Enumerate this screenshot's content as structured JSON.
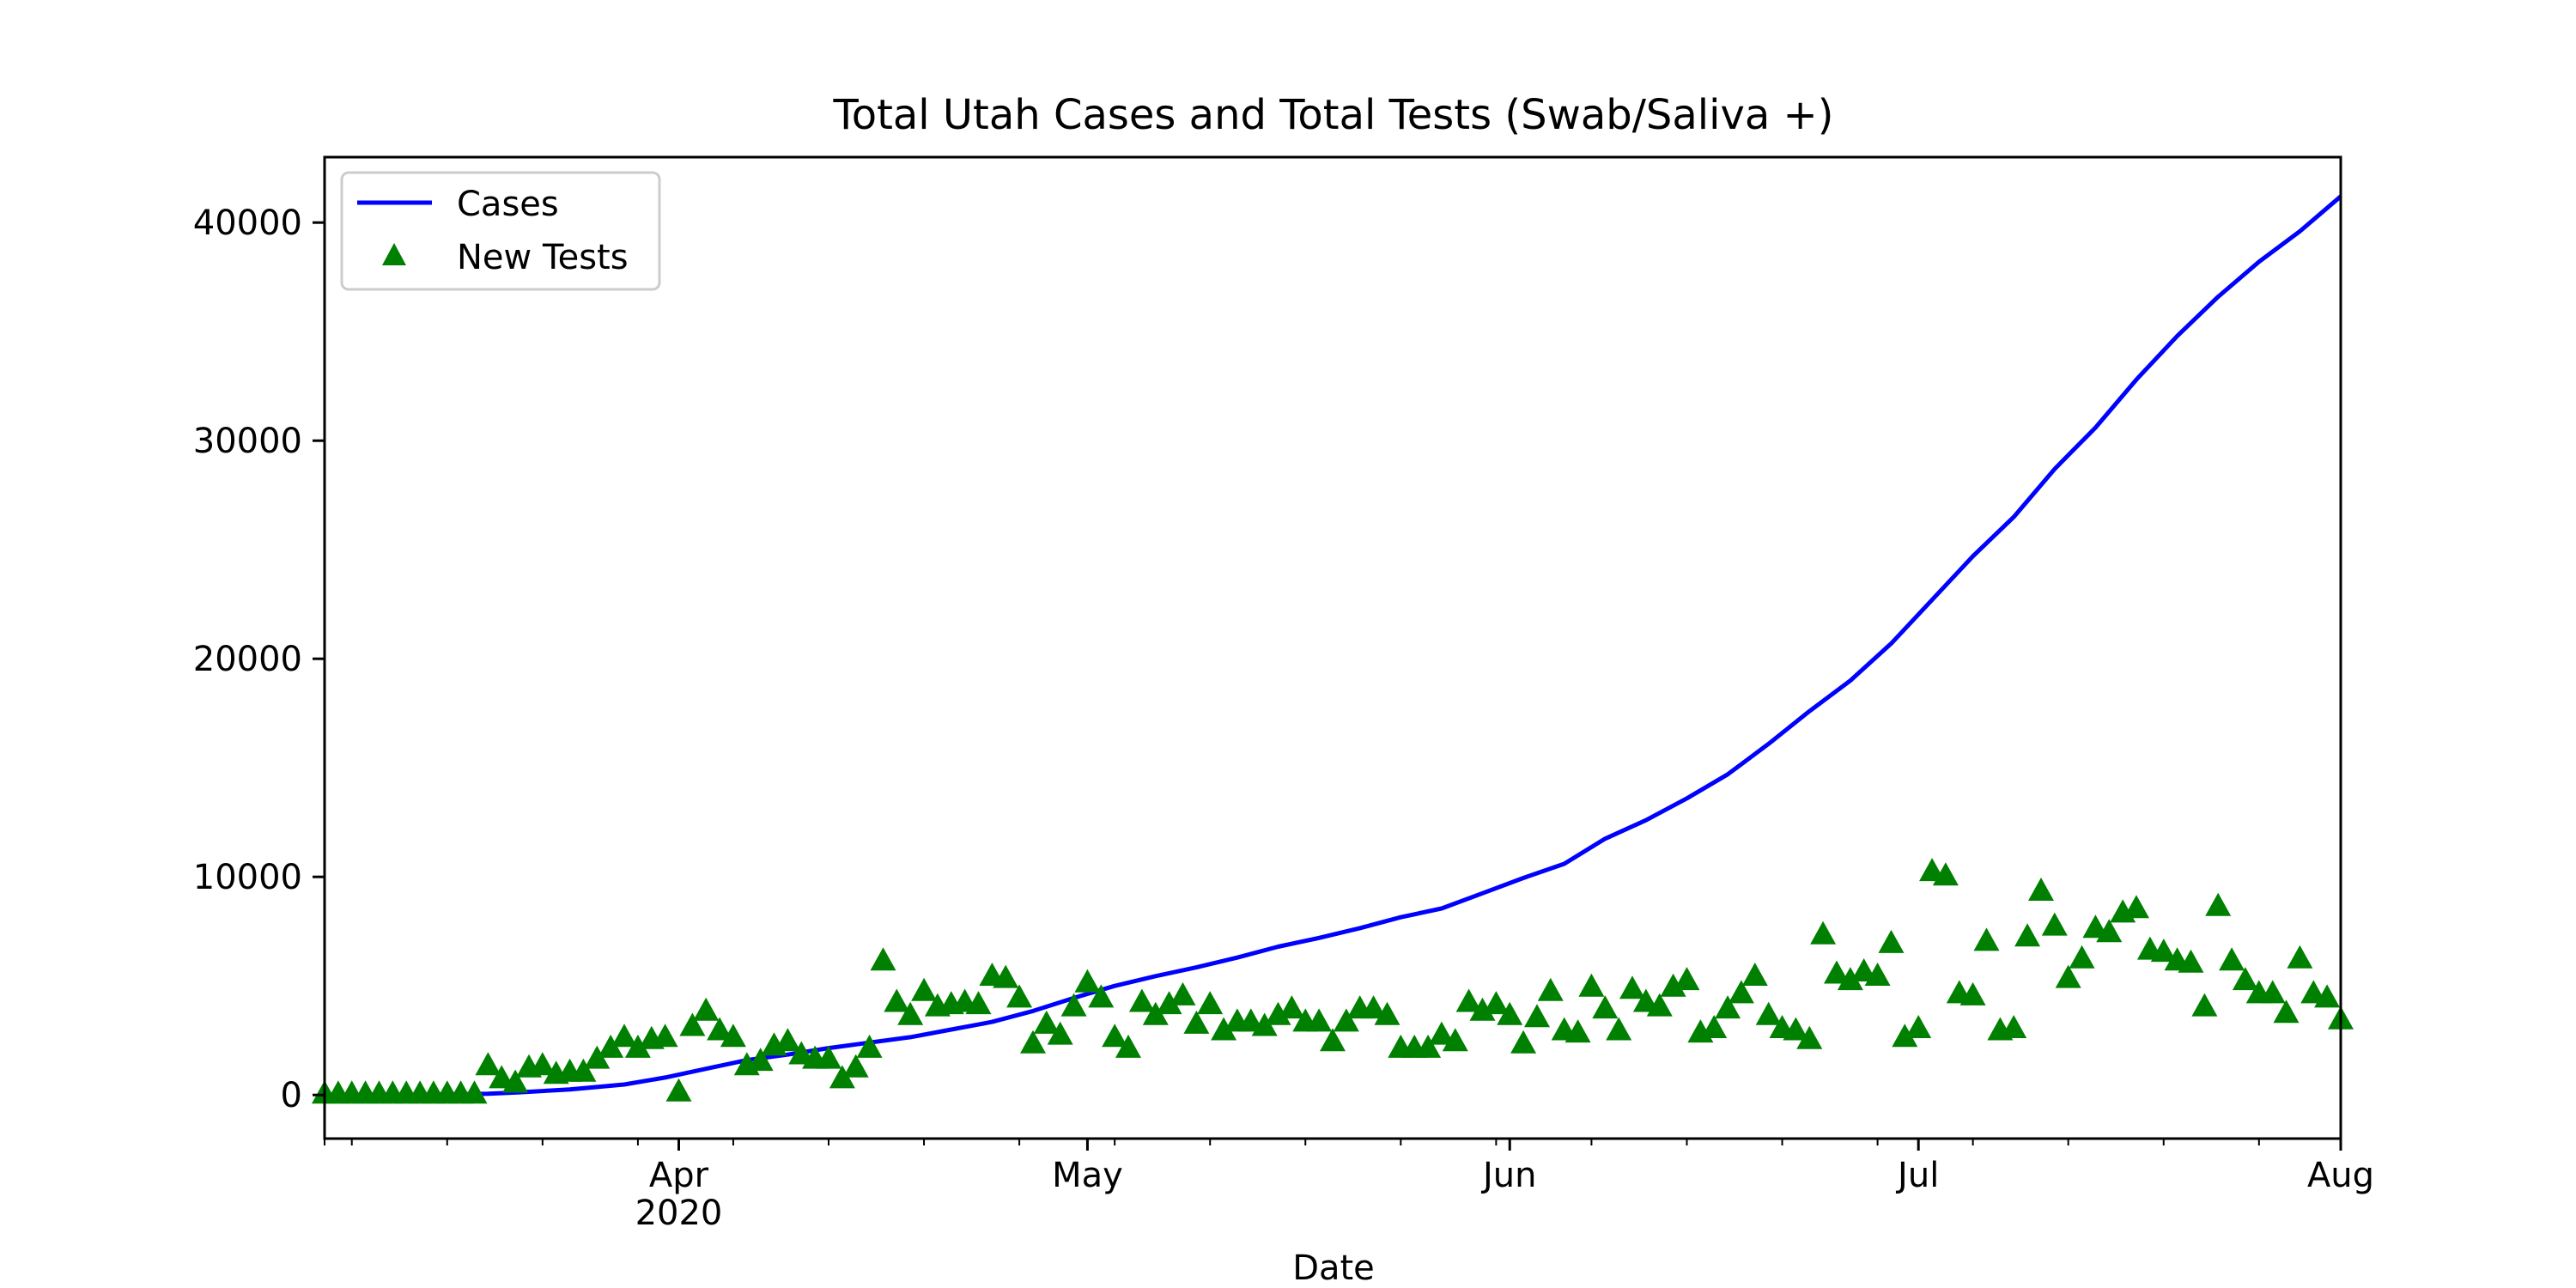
{
  "chart_data": {
    "type": "line",
    "title": "Total Utah Cases and Total Tests (Swab/Saliva +)",
    "xlabel": "Date",
    "ylabel": "",
    "x_range": [
      "2020-03-06",
      "2020-08-01"
    ],
    "ylim": [
      -2000,
      43000
    ],
    "x_ticks": [
      {
        "date": "2020-04-01",
        "label": "Apr",
        "sublabel": "2020"
      },
      {
        "date": "2020-05-01",
        "label": "May",
        "sublabel": ""
      },
      {
        "date": "2020-06-01",
        "label": "Jun",
        "sublabel": ""
      },
      {
        "date": "2020-07-01",
        "label": "Jul",
        "sublabel": ""
      },
      {
        "date": "2020-08-01",
        "label": "Aug",
        "sublabel": ""
      }
    ],
    "y_ticks": [
      0,
      10000,
      20000,
      30000,
      40000
    ],
    "grid": false,
    "legend": {
      "position": "top-left"
    },
    "colors": {
      "cases": "#0000ff",
      "tests": "#008000"
    },
    "series": [
      {
        "name": "Cases",
        "type": "line",
        "points": [
          [
            "2020-03-06",
            0
          ],
          [
            "2020-03-12",
            5
          ],
          [
            "2020-03-18",
            60
          ],
          [
            "2020-03-20",
            110
          ],
          [
            "2020-03-24",
            250
          ],
          [
            "2020-03-28",
            480
          ],
          [
            "2020-03-31",
            800
          ],
          [
            "2020-04-03",
            1200
          ],
          [
            "2020-04-06",
            1600
          ],
          [
            "2020-04-09",
            1850
          ],
          [
            "2020-04-12",
            2150
          ],
          [
            "2020-04-15",
            2400
          ],
          [
            "2020-04-18",
            2650
          ],
          [
            "2020-04-21",
            3000
          ],
          [
            "2020-04-24",
            3350
          ],
          [
            "2020-04-27",
            3850
          ],
          [
            "2020-04-30",
            4450
          ],
          [
            "2020-05-03",
            5000
          ],
          [
            "2020-05-06",
            5450
          ],
          [
            "2020-05-09",
            5850
          ],
          [
            "2020-05-12",
            6300
          ],
          [
            "2020-05-15",
            6800
          ],
          [
            "2020-05-18",
            7200
          ],
          [
            "2020-05-21",
            7650
          ],
          [
            "2020-05-24",
            8150
          ],
          [
            "2020-05-27",
            8550
          ],
          [
            "2020-05-30",
            9250
          ],
          [
            "2020-06-02",
            9950
          ],
          [
            "2020-06-05",
            10600
          ],
          [
            "2020-06-08",
            11750
          ],
          [
            "2020-06-11",
            12600
          ],
          [
            "2020-06-14",
            13600
          ],
          [
            "2020-06-17",
            14700
          ],
          [
            "2020-06-20",
            16100
          ],
          [
            "2020-06-23",
            17600
          ],
          [
            "2020-06-26",
            19000
          ],
          [
            "2020-06-29",
            20700
          ],
          [
            "2020-07-02",
            22700
          ],
          [
            "2020-07-05",
            24700
          ],
          [
            "2020-07-08",
            26500
          ],
          [
            "2020-07-11",
            28700
          ],
          [
            "2020-07-14",
            30600
          ],
          [
            "2020-07-17",
            32800
          ],
          [
            "2020-07-20",
            34800
          ],
          [
            "2020-07-23",
            36600
          ],
          [
            "2020-07-26",
            38200
          ],
          [
            "2020-07-29",
            39600
          ],
          [
            "2020-08-01",
            41200
          ]
        ]
      },
      {
        "name": "New Tests",
        "type": "scatter",
        "marker": "triangle",
        "points": [
          [
            "2020-03-06",
            0
          ],
          [
            "2020-03-07",
            0
          ],
          [
            "2020-03-08",
            0
          ],
          [
            "2020-03-09",
            0
          ],
          [
            "2020-03-10",
            0
          ],
          [
            "2020-03-11",
            0
          ],
          [
            "2020-03-12",
            0
          ],
          [
            "2020-03-13",
            0
          ],
          [
            "2020-03-14",
            0
          ],
          [
            "2020-03-15",
            0
          ],
          [
            "2020-03-16",
            0
          ],
          [
            "2020-03-17",
            0
          ],
          [
            "2020-03-18",
            1300
          ],
          [
            "2020-03-19",
            700
          ],
          [
            "2020-03-20",
            500
          ],
          [
            "2020-03-21",
            1200
          ],
          [
            "2020-03-22",
            1300
          ],
          [
            "2020-03-23",
            900
          ],
          [
            "2020-03-24",
            1000
          ],
          [
            "2020-03-25",
            1000
          ],
          [
            "2020-03-26",
            1600
          ],
          [
            "2020-03-27",
            2100
          ],
          [
            "2020-03-28",
            2600
          ],
          [
            "2020-03-29",
            2100
          ],
          [
            "2020-03-30",
            2500
          ],
          [
            "2020-03-31",
            2600
          ],
          [
            "2020-04-01",
            100
          ],
          [
            "2020-04-02",
            3100
          ],
          [
            "2020-04-03",
            3800
          ],
          [
            "2020-04-04",
            2900
          ],
          [
            "2020-04-05",
            2600
          ],
          [
            "2020-04-06",
            1300
          ],
          [
            "2020-04-07",
            1500
          ],
          [
            "2020-04-08",
            2200
          ],
          [
            "2020-04-09",
            2400
          ],
          [
            "2020-04-10",
            1800
          ],
          [
            "2020-04-11",
            1600
          ],
          [
            "2020-04-12",
            1600
          ],
          [
            "2020-04-13",
            700
          ],
          [
            "2020-04-14",
            1200
          ],
          [
            "2020-04-15",
            2100
          ],
          [
            "2020-04-16",
            6100
          ],
          [
            "2020-04-17",
            4200
          ],
          [
            "2020-04-18",
            3600
          ],
          [
            "2020-04-19",
            4700
          ],
          [
            "2020-04-20",
            4000
          ],
          [
            "2020-04-21",
            4100
          ],
          [
            "2020-04-22",
            4200
          ],
          [
            "2020-04-23",
            4100
          ],
          [
            "2020-04-24",
            5400
          ],
          [
            "2020-04-25",
            5300
          ],
          [
            "2020-04-26",
            4400
          ],
          [
            "2020-04-27",
            2300
          ],
          [
            "2020-04-28",
            3200
          ],
          [
            "2020-04-29",
            2700
          ],
          [
            "2020-04-30",
            4000
          ],
          [
            "2020-05-01",
            5100
          ],
          [
            "2020-05-02",
            4400
          ],
          [
            "2020-05-03",
            2600
          ],
          [
            "2020-05-04",
            2100
          ],
          [
            "2020-05-05",
            4200
          ],
          [
            "2020-05-06",
            3600
          ],
          [
            "2020-05-07",
            4100
          ],
          [
            "2020-05-08",
            4500
          ],
          [
            "2020-05-09",
            3200
          ],
          [
            "2020-05-10",
            4100
          ],
          [
            "2020-05-11",
            2900
          ],
          [
            "2020-05-12",
            3300
          ],
          [
            "2020-05-13",
            3300
          ],
          [
            "2020-05-14",
            3100
          ],
          [
            "2020-05-15",
            3600
          ],
          [
            "2020-05-16",
            3900
          ],
          [
            "2020-05-17",
            3300
          ],
          [
            "2020-05-18",
            3300
          ],
          [
            "2020-05-19",
            2400
          ],
          [
            "2020-05-20",
            3300
          ],
          [
            "2020-05-21",
            3900
          ],
          [
            "2020-05-22",
            3900
          ],
          [
            "2020-05-23",
            3600
          ],
          [
            "2020-05-24",
            2100
          ],
          [
            "2020-05-25",
            2100
          ],
          [
            "2020-05-26",
            2100
          ],
          [
            "2020-05-27",
            2700
          ],
          [
            "2020-05-28",
            2400
          ],
          [
            "2020-05-29",
            4200
          ],
          [
            "2020-05-30",
            3800
          ],
          [
            "2020-05-31",
            4100
          ],
          [
            "2020-06-01",
            3600
          ],
          [
            "2020-06-02",
            2300
          ],
          [
            "2020-06-03",
            3500
          ],
          [
            "2020-06-04",
            4700
          ],
          [
            "2020-06-05",
            2900
          ],
          [
            "2020-06-06",
            2800
          ],
          [
            "2020-06-07",
            4900
          ],
          [
            "2020-06-08",
            3900
          ],
          [
            "2020-06-09",
            2900
          ],
          [
            "2020-06-10",
            4800
          ],
          [
            "2020-06-11",
            4200
          ],
          [
            "2020-06-12",
            4000
          ],
          [
            "2020-06-13",
            4900
          ],
          [
            "2020-06-14",
            5200
          ],
          [
            "2020-06-15",
            2800
          ],
          [
            "2020-06-16",
            3000
          ],
          [
            "2020-06-17",
            3900
          ],
          [
            "2020-06-18",
            4600
          ],
          [
            "2020-06-19",
            5400
          ],
          [
            "2020-06-20",
            3600
          ],
          [
            "2020-06-21",
            3000
          ],
          [
            "2020-06-22",
            2900
          ],
          [
            "2020-06-23",
            2500
          ],
          [
            "2020-06-24",
            7300
          ],
          [
            "2020-06-25",
            5500
          ],
          [
            "2020-06-26",
            5200
          ],
          [
            "2020-06-27",
            5600
          ],
          [
            "2020-06-28",
            5400
          ],
          [
            "2020-06-29",
            6900
          ],
          [
            "2020-06-30",
            2600
          ],
          [
            "2020-07-01",
            3000
          ],
          [
            "2020-07-02",
            10200
          ],
          [
            "2020-07-03",
            10000
          ],
          [
            "2020-07-04",
            4600
          ],
          [
            "2020-07-05",
            4500
          ],
          [
            "2020-07-06",
            7000
          ],
          [
            "2020-07-07",
            2900
          ],
          [
            "2020-07-08",
            3000
          ],
          [
            "2020-07-09",
            7200
          ],
          [
            "2020-07-10",
            9300
          ],
          [
            "2020-07-11",
            7700
          ],
          [
            "2020-07-12",
            5300
          ],
          [
            "2020-07-13",
            6200
          ],
          [
            "2020-07-14",
            7600
          ],
          [
            "2020-07-15",
            7400
          ],
          [
            "2020-07-16",
            8300
          ],
          [
            "2020-07-17",
            8500
          ],
          [
            "2020-07-18",
            6600
          ],
          [
            "2020-07-19",
            6500
          ],
          [
            "2020-07-20",
            6100
          ],
          [
            "2020-07-21",
            6000
          ],
          [
            "2020-07-22",
            4000
          ],
          [
            "2020-07-23",
            8600
          ],
          [
            "2020-07-24",
            6100
          ],
          [
            "2020-07-25",
            5200
          ],
          [
            "2020-07-26",
            4600
          ],
          [
            "2020-07-27",
            4600
          ],
          [
            "2020-07-28",
            3700
          ],
          [
            "2020-07-29",
            6200
          ],
          [
            "2020-07-30",
            4600
          ],
          [
            "2020-07-31",
            4400
          ],
          [
            "2020-08-01",
            3400
          ]
        ]
      }
    ]
  }
}
